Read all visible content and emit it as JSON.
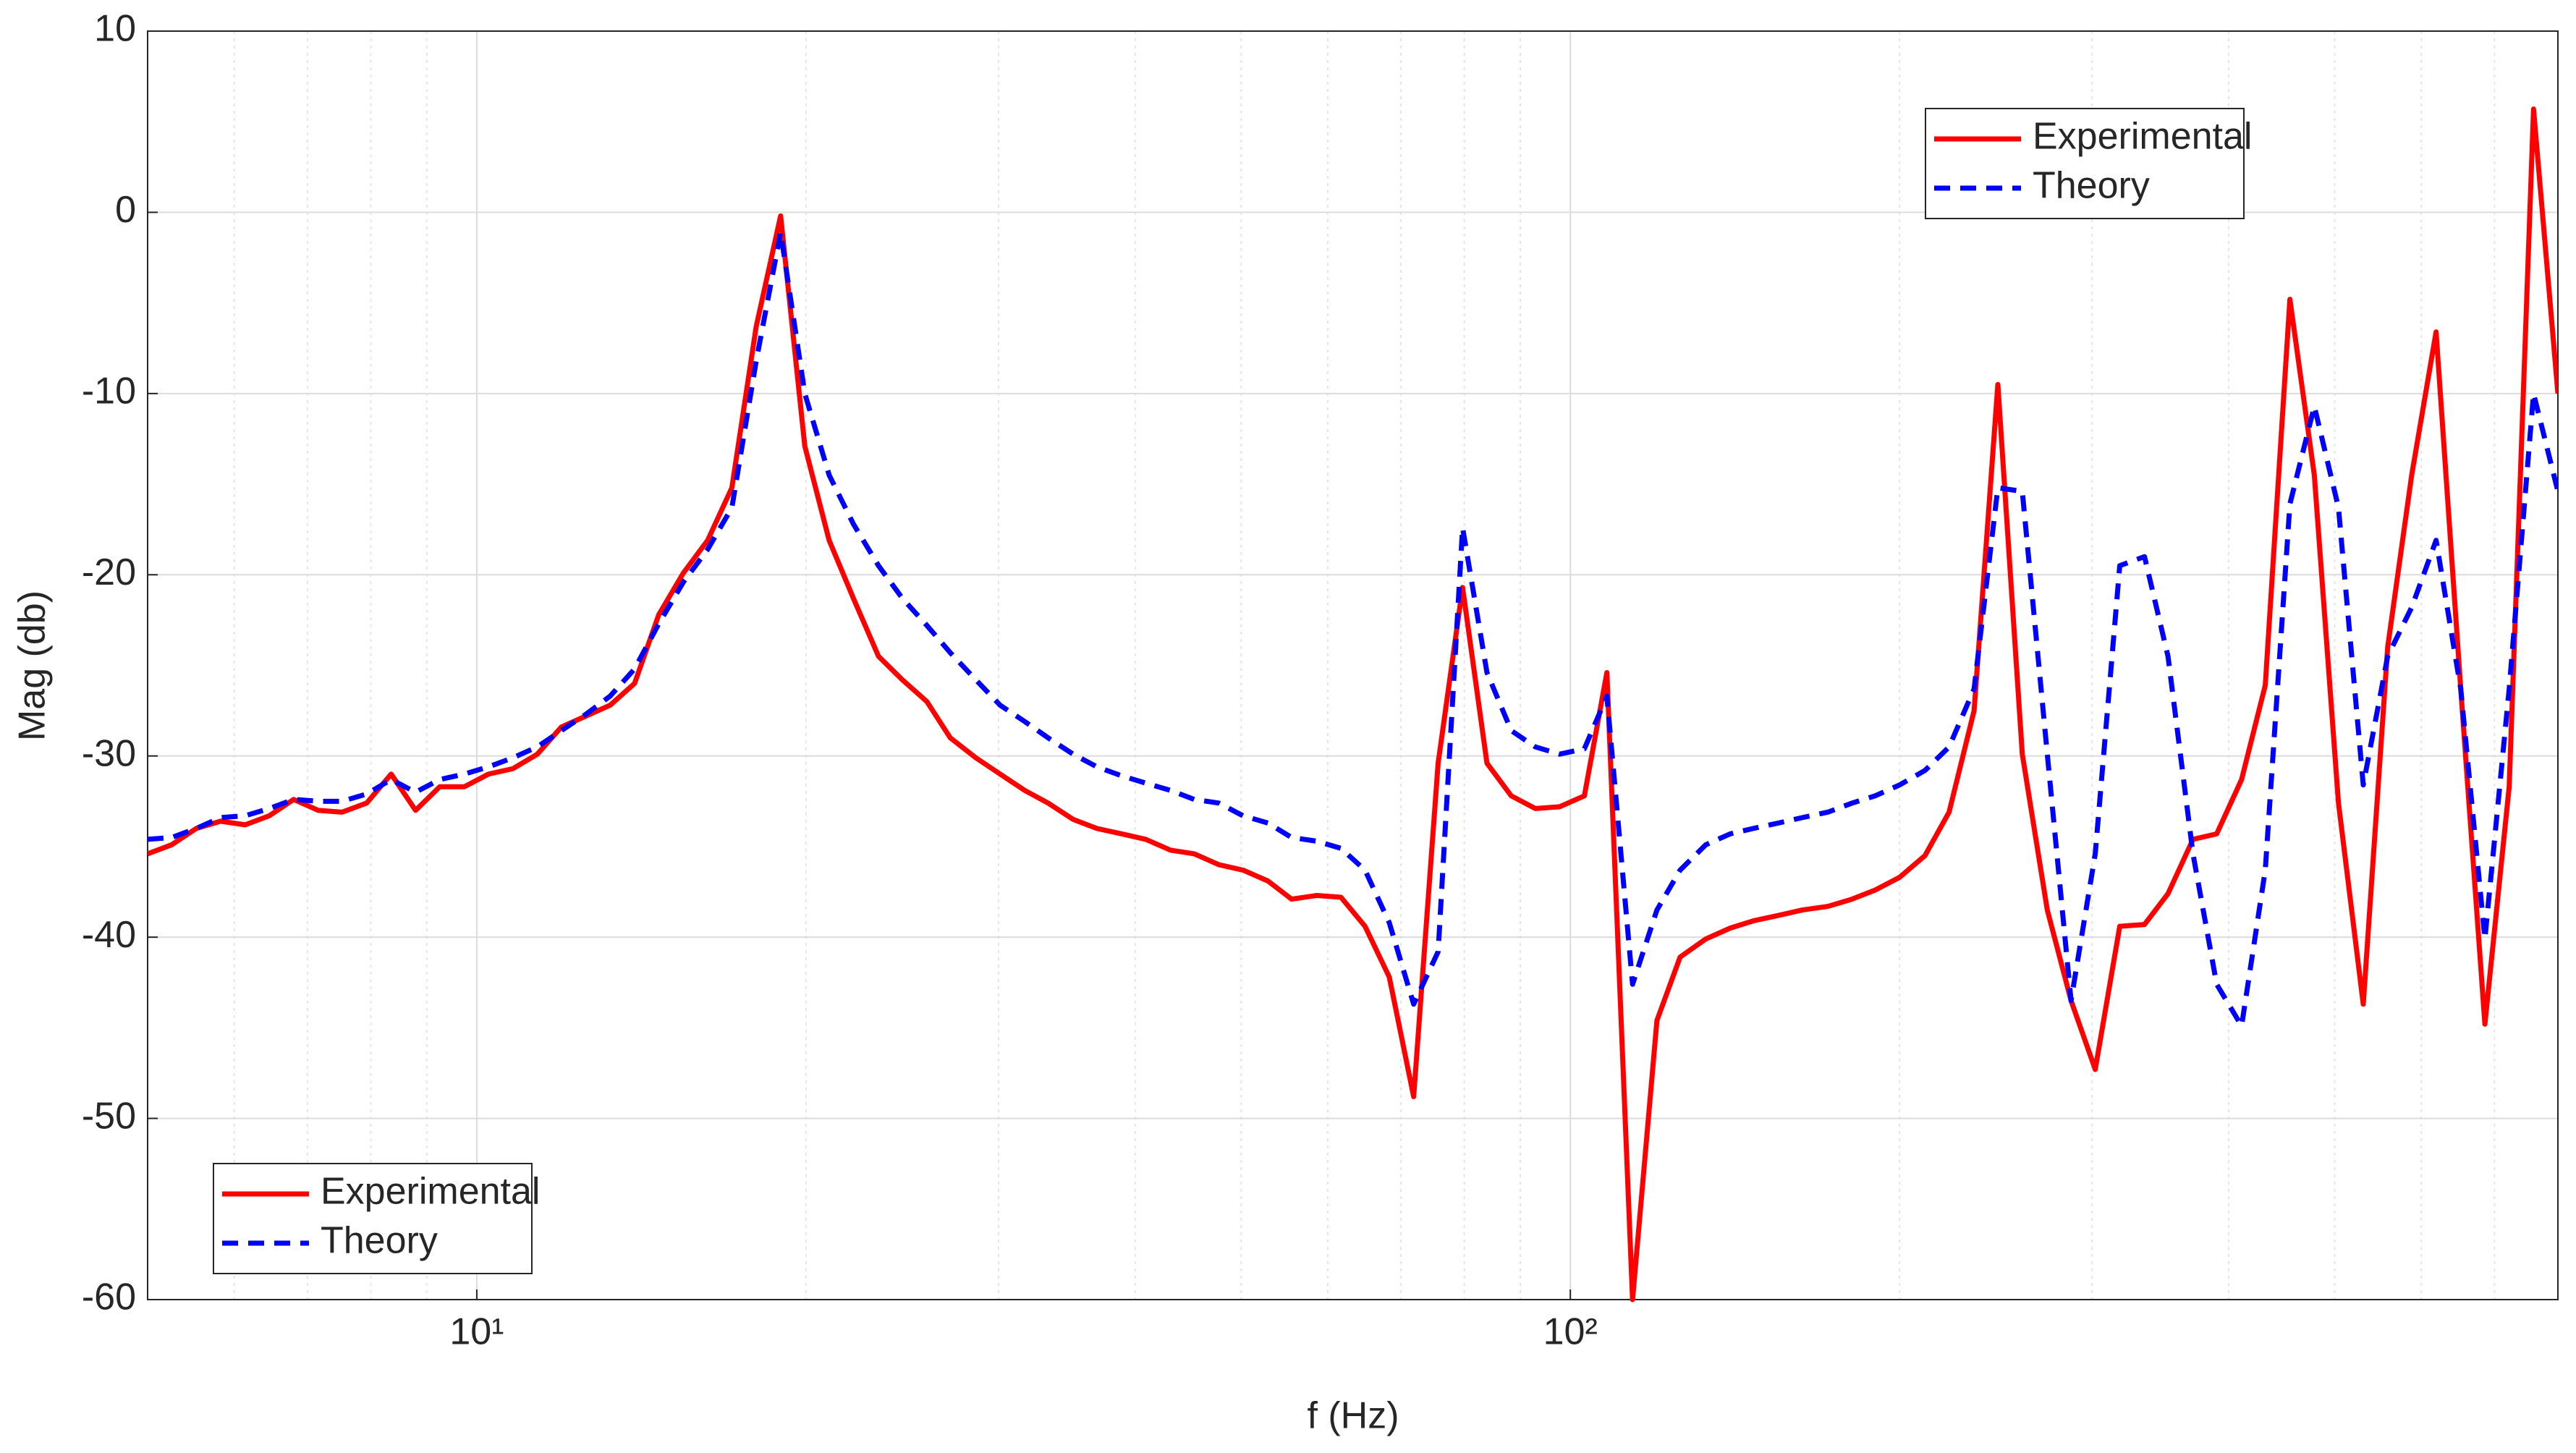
{
  "chart_data": {
    "type": "line",
    "xlabel": "f (Hz)",
    "ylabel": "Mag (db)",
    "xscale": "log",
    "x": [
      5.0,
      5.26,
      5.54,
      5.83,
      6.14,
      6.46,
      6.8,
      7.16,
      7.53,
      7.93,
      8.35,
      8.79,
      9.25,
      9.74,
      10.25,
      10.79,
      11.36,
      11.95,
      12.58,
      13.24,
      13.94,
      14.67,
      15.45,
      16.26,
      17.11,
      18.01,
      18.96,
      19.95,
      21.0,
      22.1,
      23.3,
      24.5,
      25.8,
      27.1,
      28.6,
      30.1,
      31.7,
      33.3,
      35.1,
      36.9,
      38.9,
      40.9,
      43.1,
      45.3,
      47.7,
      50.2,
      52.9,
      55.6,
      58.6,
      61.7,
      64.9,
      68.3,
      71.9,
      75.7,
      79.7,
      83.9,
      88.3,
      92.9,
      97.8,
      103,
      108,
      114,
      120,
      126,
      133,
      140,
      147,
      155,
      163,
      172,
      181,
      190,
      200,
      211,
      222,
      234,
      246,
      259,
      273,
      287,
      302,
      318,
      335,
      352,
      371,
      390,
      411,
      432,
      455,
      479,
      504,
      531,
      559,
      588,
      619,
      652,
      686,
      722,
      760,
      800
    ],
    "series": [
      {
        "name": "Experimental",
        "color": "#ff0000",
        "linestyle": "solid",
        "values": [
          -35.4,
          -34.9,
          -34,
          -33.6,
          -33.8,
          -33.3,
          -32.4,
          -33,
          -33.1,
          -32.6,
          -31,
          -33,
          -31.7,
          -31.7,
          -31,
          -30.7,
          -29.9,
          -28.4,
          -27.8,
          -27.2,
          -26,
          -22.2,
          -19.9,
          -18.1,
          -15.2,
          -6.3,
          -0.2,
          -12.9,
          -18.1,
          -21.3,
          -24.5,
          -25.8,
          -27,
          -29,
          -30.1,
          -31,
          -31.9,
          -32.6,
          -33.5,
          -34,
          -34.3,
          -34.6,
          -35.2,
          -35.4,
          -36,
          -36.3,
          -36.9,
          -37.9,
          -37.7,
          -37.8,
          -39.4,
          -42.2,
          -48.8,
          -30.4,
          -20.7,
          -30.4,
          -32.2,
          -32.9,
          -32.8,
          -32.2,
          -25.4,
          -60,
          -44.6,
          -41.1,
          -40.1,
          -39.5,
          -39.1,
          -38.8,
          -38.5,
          -38.3,
          -37.9,
          -37.4,
          -36.7,
          -35.5,
          -33.1,
          -27.5,
          -9.5,
          -29.9,
          -38.5,
          -43.5,
          -47.3,
          -39.4,
          -39.3,
          -37.6,
          -34.6,
          -34.3,
          -31.3,
          -26.1,
          -4.8,
          -14.5,
          -32.6,
          -43.7,
          -24,
          -14.5,
          -6.6,
          -26.3,
          -44.8,
          -31.7,
          5.7,
          -10
        ]
      },
      {
        "name": "Theory",
        "color": "#0000ff",
        "linestyle": "dashed",
        "values": [
          -34.6,
          -34.5,
          -34,
          -33.4,
          -33.3,
          -32.9,
          -32.4,
          -32.5,
          -32.5,
          -32.1,
          -31.3,
          -32,
          -31.3,
          -31,
          -30.6,
          -30.1,
          -29.5,
          -28.6,
          -27.7,
          -26.7,
          -25.2,
          -22.7,
          -20.4,
          -18.6,
          -16.3,
          -8.2,
          -1.1,
          -10,
          -14.5,
          -17.2,
          -19.5,
          -21.3,
          -22.8,
          -24.3,
          -25.8,
          -27.2,
          -28.1,
          -29,
          -29.9,
          -30.6,
          -31.1,
          -31.5,
          -31.9,
          -32.4,
          -32.6,
          -33.3,
          -33.7,
          -34.5,
          -34.7,
          -35.1,
          -36.3,
          -39.2,
          -43.7,
          -40.8,
          -17.4,
          -25.4,
          -28.6,
          -29.5,
          -29.9,
          -29.6,
          -26.7,
          -42.6,
          -38.5,
          -36.3,
          -34.9,
          -34.3,
          -34,
          -33.7,
          -33.4,
          -33.1,
          -32.6,
          -32.2,
          -31.6,
          -30.8,
          -29.5,
          -26.3,
          -15.2,
          -15.4,
          -29.9,
          -43.5,
          -35.4,
          -19.5,
          -19,
          -24.5,
          -35.4,
          -42.6,
          -44.9,
          -36.3,
          -16.1,
          -10.7,
          -16.3,
          -31.6,
          -24.5,
          -21.8,
          -18.1,
          -26.3,
          -40.1,
          -26.3,
          -10,
          -15.4
        ]
      }
    ],
    "xlim": [
      5,
      800
    ],
    "xticks": [
      {
        "value": 10,
        "label": "10¹"
      },
      {
        "value": 100,
        "label": "10²"
      }
    ],
    "xminorticks": [
      6,
      7,
      8,
      9,
      20,
      30,
      40,
      50,
      60,
      70,
      80,
      90,
      200,
      300,
      400,
      500,
      600,
      700
    ],
    "ylim": [
      -60,
      10
    ],
    "yticks": [
      -60,
      -50,
      -40,
      -30,
      -20,
      -10,
      0,
      10
    ],
    "grid": true,
    "minor_grid": true,
    "legend_locations": [
      "upper right",
      "lower left"
    ]
  }
}
